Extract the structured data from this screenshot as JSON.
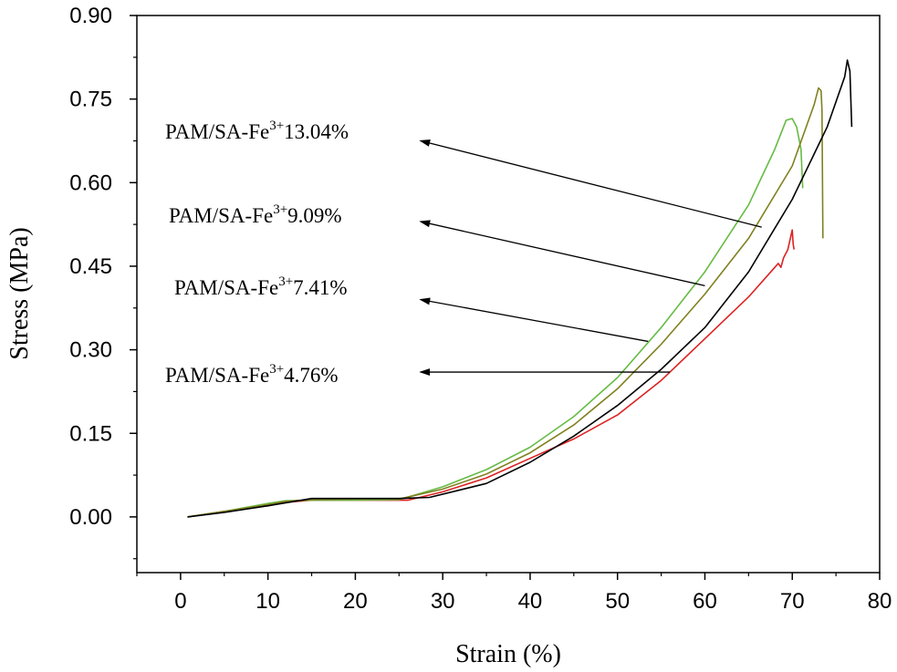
{
  "chart_data": {
    "type": "line",
    "title": "",
    "xlabel": "Strain (%)",
    "ylabel": "Stress (MPa)",
    "xlim": [
      -5,
      80
    ],
    "ylim": [
      -0.1,
      0.9
    ],
    "xticks": [
      0,
      10,
      20,
      30,
      40,
      50,
      60,
      70,
      80
    ],
    "xtick_labels": [
      "0",
      "10",
      "20",
      "30",
      "40",
      "50",
      "60",
      "70",
      "80"
    ],
    "yticks": [
      0.0,
      0.15,
      0.3,
      0.45,
      0.6,
      0.75,
      0.9
    ],
    "ytick_labels": [
      "0.00",
      "0.15",
      "0.30",
      "0.45",
      "0.60",
      "0.75",
      "0.90"
    ],
    "grid": false,
    "series": [
      {
        "label_ref": 0,
        "color": "#000000",
        "points": [
          [
            0.8,
            0.0
          ],
          [
            5,
            0.008
          ],
          [
            10,
            0.02
          ],
          [
            15,
            0.033
          ],
          [
            20,
            0.033
          ],
          [
            25,
            0.033
          ],
          [
            28.5,
            0.035
          ],
          [
            35,
            0.06
          ],
          [
            40,
            0.098
          ],
          [
            45,
            0.145
          ],
          [
            50,
            0.2
          ],
          [
            55,
            0.265
          ],
          [
            60,
            0.34
          ],
          [
            65,
            0.44
          ],
          [
            70,
            0.57
          ],
          [
            74,
            0.7
          ],
          [
            76,
            0.79
          ],
          [
            76.3,
            0.82
          ],
          [
            76.6,
            0.8
          ],
          [
            76.8,
            0.7
          ]
        ]
      },
      {
        "label_ref": 1,
        "color": "#808020",
        "points": [
          [
            0.8,
            0.0
          ],
          [
            5,
            0.01
          ],
          [
            10,
            0.022
          ],
          [
            12,
            0.028
          ],
          [
            15,
            0.031
          ],
          [
            20,
            0.032
          ],
          [
            25,
            0.032
          ],
          [
            30,
            0.05
          ],
          [
            35,
            0.077
          ],
          [
            40,
            0.115
          ],
          [
            45,
            0.165
          ],
          [
            50,
            0.23
          ],
          [
            55,
            0.31
          ],
          [
            60,
            0.4
          ],
          [
            65,
            0.5
          ],
          [
            70,
            0.63
          ],
          [
            72.5,
            0.74
          ],
          [
            73,
            0.77
          ],
          [
            73.3,
            0.765
          ],
          [
            73.4,
            0.73
          ],
          [
            73.5,
            0.5
          ]
        ]
      },
      {
        "label_ref": 2,
        "color": "#66bb44",
        "points": [
          [
            0.8,
            0.0
          ],
          [
            5,
            0.01
          ],
          [
            10,
            0.024
          ],
          [
            12,
            0.029
          ],
          [
            15,
            0.03
          ],
          [
            20,
            0.03
          ],
          [
            25,
            0.031
          ],
          [
            30,
            0.054
          ],
          [
            35,
            0.085
          ],
          [
            40,
            0.125
          ],
          [
            45,
            0.18
          ],
          [
            50,
            0.25
          ],
          [
            55,
            0.34
          ],
          [
            60,
            0.44
          ],
          [
            65,
            0.56
          ],
          [
            68,
            0.66
          ],
          [
            69.3,
            0.712
          ],
          [
            70,
            0.715
          ],
          [
            70.5,
            0.7
          ],
          [
            71,
            0.66
          ],
          [
            71.2,
            0.59
          ]
        ]
      },
      {
        "label_ref": 3,
        "color": "#dd2222",
        "points": [
          [
            0.8,
            0.0
          ],
          [
            5,
            0.01
          ],
          [
            10,
            0.02
          ],
          [
            12,
            0.026
          ],
          [
            15,
            0.03
          ],
          [
            20,
            0.03
          ],
          [
            26,
            0.03
          ],
          [
            30,
            0.045
          ],
          [
            35,
            0.07
          ],
          [
            40,
            0.105
          ],
          [
            45,
            0.14
          ],
          [
            50,
            0.183
          ],
          [
            55,
            0.245
          ],
          [
            60,
            0.32
          ],
          [
            65,
            0.395
          ],
          [
            68,
            0.448
          ],
          [
            68.4,
            0.455
          ],
          [
            68.7,
            0.448
          ],
          [
            69,
            0.465
          ],
          [
            69.5,
            0.48
          ],
          [
            70,
            0.515
          ],
          [
            70.1,
            0.49
          ],
          [
            70.2,
            0.48
          ]
        ]
      }
    ],
    "annotations": [
      {
        "base": "PAM/SA-Fe",
        "sup": "3+",
        "value": "13.04%",
        "arrow_from": [
          66.5,
          0.52
        ],
        "arrow_to": [
          27.5,
          0.675
        ]
      },
      {
        "base": "PAM/SA-Fe",
        "sup": "3+",
        "value": "9.09%",
        "arrow_from": [
          60,
          0.415
        ],
        "arrow_to": [
          27.5,
          0.53
        ]
      },
      {
        "base": "PAM/SA-Fe",
        "sup": "3+",
        "value": "7.41%",
        "arrow_from": [
          53.5,
          0.315
        ],
        "arrow_to": [
          27.5,
          0.39
        ]
      },
      {
        "base": "PAM/SA-Fe",
        "sup": "3+",
        "value": "4.76%",
        "arrow_from": [
          56,
          0.26
        ],
        "arrow_to": [
          27.5,
          0.26
        ]
      }
    ]
  }
}
